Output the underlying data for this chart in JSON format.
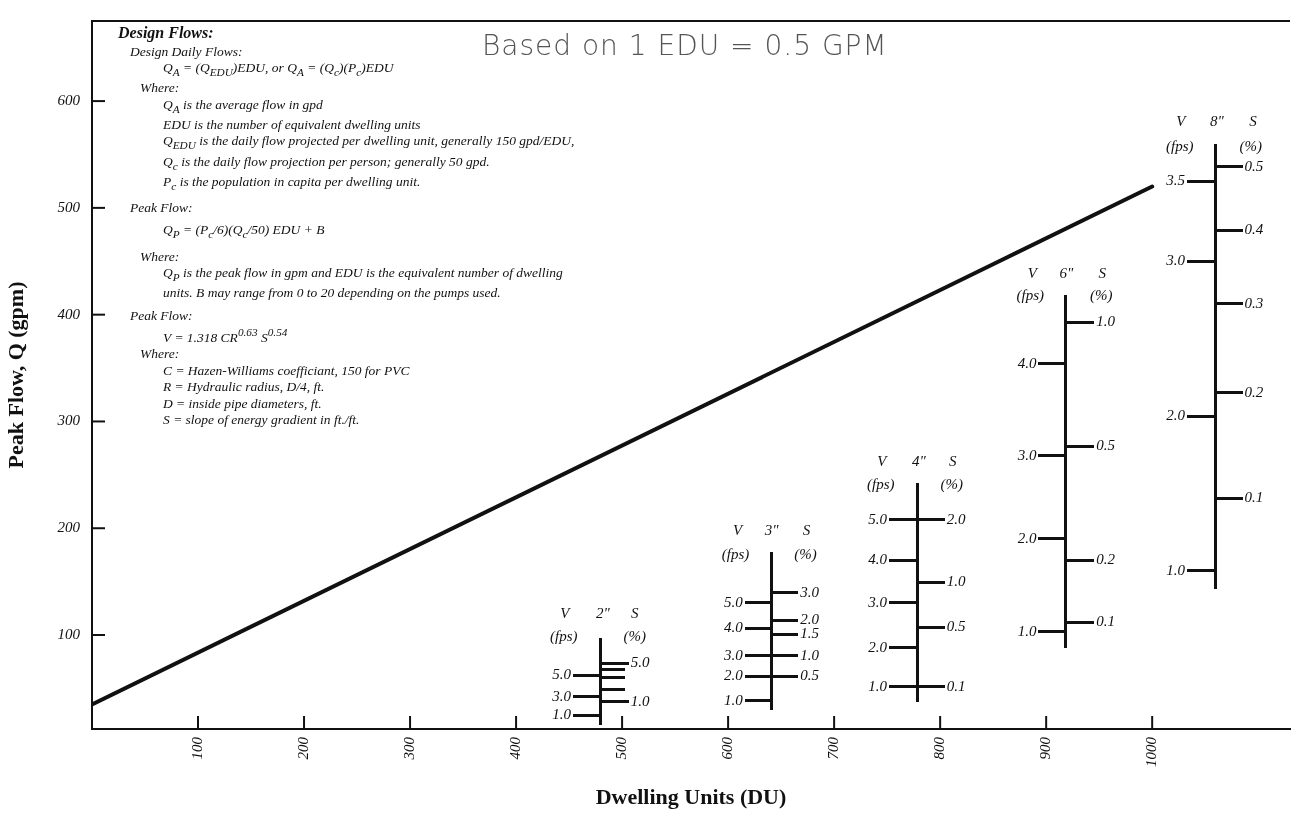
{
  "chart_data": {
    "type": "line",
    "xlabel": "Dwelling Units (DU)",
    "ylabel": "Peak Flow, Q (gpm)",
    "series": [
      {
        "color": "#111111",
        "x": [
          0,
          1000
        ],
        "values": [
          35,
          520
        ]
      }
    ],
    "xlim": [
      0,
      1130
    ],
    "xticks": [
      100,
      200,
      300,
      400,
      500,
      600,
      700,
      800,
      900,
      1000
    ],
    "ylim": [
      12,
      675
    ],
    "yticks": [
      100,
      200,
      300,
      400,
      500,
      600
    ],
    "grid": false,
    "legend": false,
    "marker": "none",
    "line_style": "solid",
    "annotations": [
      "Design Flows:",
      "Design Daily Flows:",
      "Q$_{A}$ = (Q$_{EDU}$)EDU, or Q$_{A}$ = (Q$_{c}$)(P$_{c}$)EDU",
      "Where:",
      "Q$_{A}$ is the average flow in gpd",
      "EDU is the number of equivalent dwelling units",
      "Q$_{EDU}$ is the daily flow projected per dwelling unit, generally 150 gpd/EDU,",
      "Q$_{c}$ is the daily flow projection per person; generally 50 gpd.",
      "P$_{c}$ is the population in capita per dwelling unit.",
      "Peak Flow:",
      "Q$_{P}$ = (P$_{c}$/6)(Q$_{c}$/50) EDU + B",
      "Where:",
      "Q$_{P}$ is the peak flow in gpm and EDU is the equivalent number of dwelling units. B may range from 0 to 20 depending on the pumps used.",
      "Peak Flow:",
      "V = 1.318 CR$^{0.63}$ S$^{0.54}$",
      "Where:",
      "C = Hazen-Williams coefficiant, 150 for PVC",
      "R = Hydraulic radius, D/4, ft.",
      "D = inside pipe diameters, ft.",
      "S = slope of energy gradient in ft./ft.",
      "Based on 1 EDU = 0.5 GPM",
      "V",
      "2\"",
      "S",
      "(fps)",
      "(%)",
      "5.0",
      "3.0",
      "1.0",
      "5.0",
      "1.0",
      "V",
      "3\"",
      "S",
      "(fps)",
      "(%)",
      "5.0",
      "4.0",
      "3.0",
      "2.0",
      "1.0",
      "3.0",
      "2.0",
      "1.5",
      "1.0",
      "0.5",
      "V",
      "4\"",
      "S",
      "(fps)",
      "(%)",
      "5.0",
      "4.0",
      "3.0",
      "2.0",
      "1.0",
      "2.0",
      "1.0",
      "0.5",
      "0.1",
      "V",
      "6\"",
      "S",
      "(fps)",
      "(%)",
      "4.0",
      "3.0",
      "2.0",
      "1.0",
      "1.0",
      "0.5",
      "0.2",
      "0.1",
      "V",
      "8\"",
      "S",
      "(fps)",
      "(%)",
      "3.5",
      "3.0",
      "2.0",
      "1.0",
      "0.5",
      "0.4",
      "0.3",
      "0.2",
      "0.1"
    ]
  }
}
